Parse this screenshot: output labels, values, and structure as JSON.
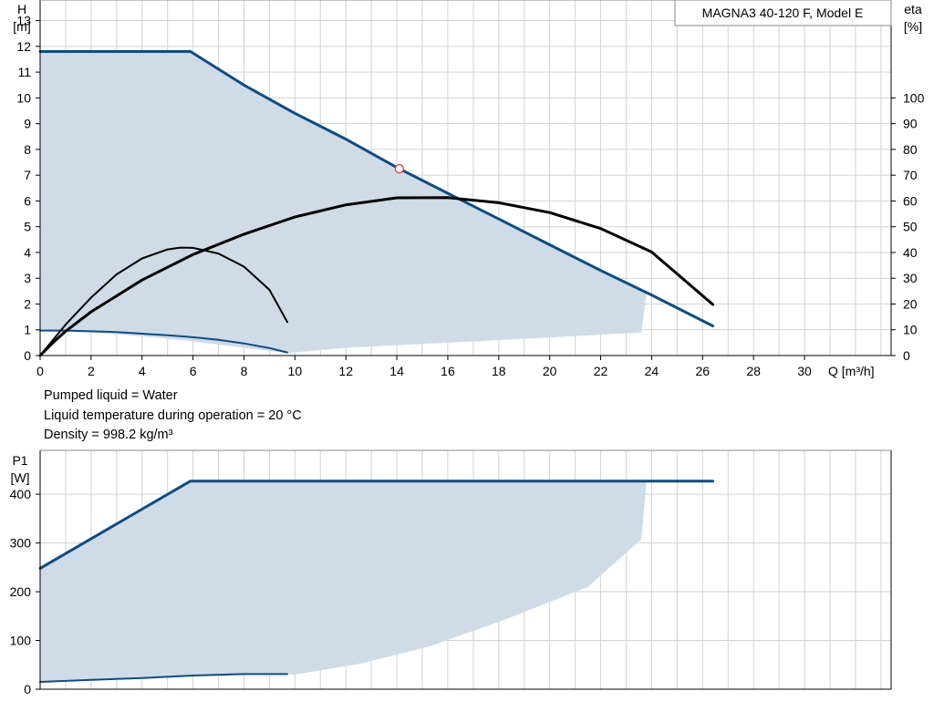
{
  "chart_data": [
    {
      "type": "line",
      "title": "MAGNA3 40-120 F, Model E",
      "xlabel": "Q [m³/h]",
      "ylabel": [
        "H",
        "[m]"
      ],
      "y2label": [
        "eta",
        "[%]"
      ],
      "xlim": [
        0,
        33.4
      ],
      "ylim": [
        0,
        13.8
      ],
      "y2lim": [
        0,
        138
      ],
      "x_ticks": [
        0,
        2,
        4,
        6,
        8,
        10,
        12,
        14,
        16,
        18,
        20,
        22,
        24,
        26,
        28,
        30
      ],
      "y_ticks": [
        0,
        1,
        2,
        3,
        4,
        5,
        6,
        7,
        8,
        9,
        10,
        11,
        12,
        13
      ],
      "y2_ticks": [
        0,
        10,
        20,
        30,
        40,
        50,
        60,
        70,
        80,
        90,
        100
      ],
      "grid": true,
      "colors": {
        "head_curve": "#0f4c81",
        "efficiency_curve": "#000000",
        "operating_area": "#cfdbe6",
        "duty_point": "#e0303a"
      },
      "operating_area": [
        [
          0,
          11.8
        ],
        [
          5.9,
          11.8
        ],
        [
          8,
          10.5
        ],
        [
          10,
          9.4
        ],
        [
          12,
          8.4
        ],
        [
          14,
          7.3
        ],
        [
          16,
          6.3
        ],
        [
          18,
          5.3
        ],
        [
          20,
          4.3
        ],
        [
          22,
          3.3
        ],
        [
          23.8,
          2.4
        ],
        [
          23.6,
          0.9
        ],
        [
          20,
          0.7
        ],
        [
          16,
          0.5
        ],
        [
          12,
          0.3
        ],
        [
          9.7,
          0.1
        ],
        [
          8,
          0.3
        ],
        [
          6,
          0.55
        ],
        [
          4,
          0.75
        ],
        [
          2,
          0.9
        ],
        [
          0,
          0.95
        ]
      ],
      "series": [
        {
          "role": "max_head",
          "axis": "H",
          "points": [
            [
              0,
              11.8
            ],
            [
              5.9,
              11.8
            ],
            [
              8,
              10.5
            ],
            [
              10,
              9.4
            ],
            [
              12,
              8.4
            ],
            [
              14,
              7.3
            ],
            [
              16,
              6.3
            ],
            [
              18,
              5.3
            ],
            [
              20,
              4.3
            ],
            [
              22,
              3.3
            ],
            [
              24,
              2.35
            ],
            [
              26.4,
              1.15
            ]
          ]
        },
        {
          "role": "min_head",
          "axis": "H",
          "points": [
            [
              0,
              0.97
            ],
            [
              1,
              0.97
            ],
            [
              2,
              0.94
            ],
            [
              3,
              0.91
            ],
            [
              4,
              0.85
            ],
            [
              5,
              0.79
            ],
            [
              6,
              0.71
            ],
            [
              7,
              0.61
            ],
            [
              8,
              0.47
            ],
            [
              9,
              0.29
            ],
            [
              9.7,
              0.12
            ]
          ]
        },
        {
          "role": "max_efficiency",
          "axis": "eta",
          "points": [
            [
              0,
              0
            ],
            [
              0.5,
              5
            ],
            [
              1,
              9.4
            ],
            [
              2,
              17
            ],
            [
              4,
              29.3
            ],
            [
              6,
              39.2
            ],
            [
              8,
              47.1
            ],
            [
              10,
              53.8
            ],
            [
              12,
              58.5
            ],
            [
              14,
              61.2
            ],
            [
              16,
              61.3
            ],
            [
              18,
              59.3
            ],
            [
              20,
              55.5
            ],
            [
              22,
              49.3
            ],
            [
              24,
              40.2
            ],
            [
              26.4,
              19.8
            ]
          ]
        },
        {
          "role": "min_efficiency",
          "axis": "eta",
          "points": [
            [
              0,
              0
            ],
            [
              0.5,
              6
            ],
            [
              1,
              12
            ],
            [
              2,
              22.5
            ],
            [
              3,
              31.5
            ],
            [
              4,
              37.7
            ],
            [
              5,
              41.2
            ],
            [
              5.5,
              41.9
            ],
            [
              6,
              41.8
            ],
            [
              7,
              39.6
            ],
            [
              8,
              34.5
            ],
            [
              9,
              25.5
            ],
            [
              9.7,
              13
            ]
          ]
        }
      ],
      "duty_point": {
        "Q": 14.1,
        "H": 7.25
      }
    },
    {
      "type": "line",
      "ylabel": [
        "P1",
        "[W]"
      ],
      "xlim": [
        0,
        33.4
      ],
      "ylim": [
        0,
        490
      ],
      "y_ticks": [
        0,
        100,
        200,
        300,
        400
      ],
      "grid": true,
      "operating_area": [
        [
          0,
          248
        ],
        [
          5.9,
          427
        ],
        [
          23.8,
          427
        ],
        [
          23.6,
          308
        ],
        [
          21.5,
          210
        ],
        [
          18.2,
          142
        ],
        [
          15.3,
          88
        ],
        [
          12.6,
          53
        ],
        [
          10,
          30
        ],
        [
          9.7,
          31
        ],
        [
          6,
          28
        ],
        [
          0,
          15
        ]
      ],
      "series": [
        {
          "role": "max_power",
          "points": [
            [
              0,
              248
            ],
            [
              5.9,
              427
            ],
            [
              26.4,
              427
            ]
          ]
        },
        {
          "role": "min_power",
          "points": [
            [
              0,
              15
            ],
            [
              2,
              19
            ],
            [
              4,
              23
            ],
            [
              6,
              28
            ],
            [
              8,
              31
            ],
            [
              9.7,
              31
            ]
          ]
        }
      ]
    }
  ],
  "liquid_info": {
    "pumped_liquid": "Pumped liquid = Water",
    "liquid_temperature": "Liquid temperature during operation = 20 °C",
    "density": "Density = 998.2 kg/m³"
  }
}
